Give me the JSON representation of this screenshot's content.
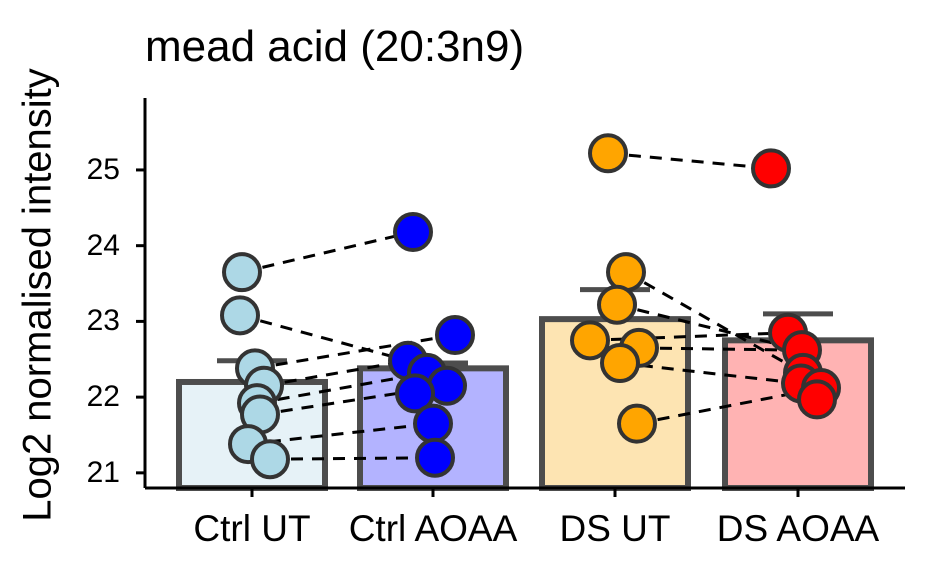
{
  "chart_data": {
    "type": "bar",
    "title": "mead acid (20:3n9)",
    "xlabel": "",
    "ylabel": "Log2 normalised intensity",
    "ylim": [
      20.8,
      25.95
    ],
    "yticks": [
      21,
      22,
      23,
      24,
      25
    ],
    "categories": [
      "Ctrl UT",
      "Ctrl AOAA",
      "DS UT",
      "DS AOAA"
    ],
    "bar_values": [
      22.2,
      22.38,
      23.03,
      22.75
    ],
    "error_upper": [
      22.48,
      22.45,
      23.42,
      23.1
    ],
    "bar_fill_colors": [
      "#e6f2f7",
      "#b3b3ff",
      "#fde4b2",
      "#ffb3b3"
    ],
    "point_colors": [
      "#add8e6",
      "#0000ff",
      "#ffa500",
      "#ff0000"
    ],
    "points": [
      [
        23.65,
        23.08,
        22.38,
        22.15,
        21.92,
        21.77,
        21.38,
        21.18
      ],
      [
        24.18,
        22.48,
        22.82,
        22.32,
        22.15,
        22.05,
        21.65,
        21.2
      ],
      [
        25.22,
        23.65,
        23.22,
        22.75,
        22.65,
        22.45,
        21.65
      ],
      [
        25.02,
        22.85,
        22.62,
        22.32,
        22.18,
        22.12,
        21.97
      ]
    ],
    "pairs": [
      [
        23.65,
        24.18
      ],
      [
        23.08,
        22.48
      ],
      [
        22.38,
        22.82
      ],
      [
        22.15,
        22.48
      ],
      [
        21.92,
        22.32
      ],
      [
        21.77,
        22.15
      ],
      [
        21.38,
        21.65
      ],
      [
        21.18,
        21.2
      ],
      [
        25.22,
        25.02
      ],
      [
        23.65,
        22.32
      ],
      [
        23.22,
        22.62
      ],
      [
        22.75,
        22.85
      ],
      [
        22.65,
        22.62
      ],
      [
        22.45,
        22.18
      ],
      [
        21.65,
        22.12
      ]
    ],
    "pair_groups": [
      [
        0,
        1
      ],
      [
        0,
        1
      ],
      [
        0,
        1
      ],
      [
        0,
        1
      ],
      [
        0,
        1
      ],
      [
        0,
        1
      ],
      [
        0,
        1
      ],
      [
        0,
        1
      ],
      [
        2,
        3
      ],
      [
        2,
        3
      ],
      [
        2,
        3
      ],
      [
        2,
        3
      ],
      [
        2,
        3
      ],
      [
        2,
        3
      ],
      [
        2,
        3
      ]
    ],
    "grid": false
  }
}
